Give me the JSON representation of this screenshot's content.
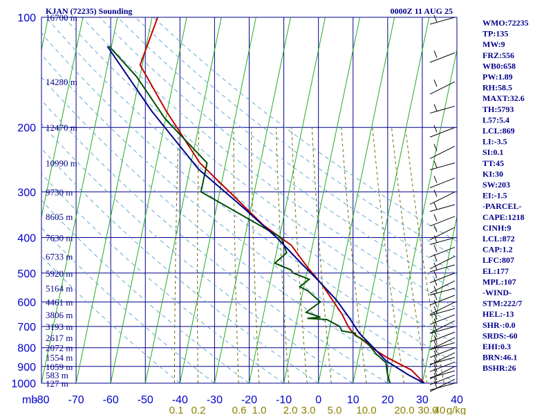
{
  "header": {
    "station": "KJAN (72235) Sounding",
    "time": "0000Z 11 AUG 25"
  },
  "chart_data": {
    "type": "line",
    "title": "KJAN (72235) Sounding",
    "subtitle": "0000Z 11 AUG 25",
    "x_label": "",
    "y_label": "mb",
    "x_range": [
      -80,
      40
    ],
    "y_range": [
      100,
      1000
    ],
    "y_scale": "log",
    "x_ticks": [
      -80,
      -70,
      -60,
      -50,
      -40,
      -30,
      -20,
      -10,
      0,
      10,
      20,
      30,
      40
    ],
    "y_ticks": [
      100,
      200,
      300,
      400,
      500,
      600,
      700,
      800,
      900,
      1000
    ],
    "mixing_ratio_labels": [
      "0.1",
      "0.2",
      "0.6",
      "1.0",
      "2.0",
      "3.0",
      "5.0",
      "10.0",
      "20.0",
      "30.0",
      "40",
      "g/kg"
    ],
    "height_labels": [
      {
        "p": 100,
        "label": "16700 m"
      },
      {
        "p": 150,
        "label": "14280 m"
      },
      {
        "p": 200,
        "label": "12470 m"
      },
      {
        "p": 250,
        "label": "10990 m"
      },
      {
        "p": 300,
        "label": "9730 m"
      },
      {
        "p": 350,
        "label": "8605 m"
      },
      {
        "p": 400,
        "label": "7630 m"
      },
      {
        "p": 450,
        "label": "6733 m"
      },
      {
        "p": 500,
        "label": "5920 m"
      },
      {
        "p": 550,
        "label": "5164 m"
      },
      {
        "p": 600,
        "label": "4461 m"
      },
      {
        "p": 650,
        "label": "3806 m"
      },
      {
        "p": 700,
        "label": "3193 m"
      },
      {
        "p": 750,
        "label": "2617 m"
      },
      {
        "p": 800,
        "label": "2072 m"
      },
      {
        "p": 850,
        "label": "1554 m"
      },
      {
        "p": 900,
        "label": "1059 m"
      },
      {
        "p": 950,
        "label": "583 m"
      },
      {
        "p": 1000,
        "label": "127 m"
      }
    ],
    "series": [
      {
        "name": "",
        "color": "#c00000",
        "points": [
          [
            -68.4,
            100
          ],
          [
            -70.6,
            135
          ],
          [
            -60.4,
            180
          ],
          [
            -47.5,
            250
          ],
          [
            -37.2,
            300
          ],
          [
            -25.4,
            370
          ],
          [
            -16.1,
            420
          ],
          [
            -10.3,
            480
          ],
          [
            -4.7,
            540
          ],
          [
            -1.8,
            580
          ],
          [
            2.8,
            650
          ],
          [
            5.2,
            700
          ],
          [
            7.0,
            730
          ],
          [
            10.0,
            760
          ],
          [
            14.2,
            810
          ],
          [
            18.2,
            850
          ],
          [
            26.0,
            920
          ],
          [
            30.6,
            1000
          ]
        ]
      },
      {
        "name": "",
        "color": "#004d00",
        "points": [
          [
            -80.7,
            120
          ],
          [
            -71.0,
            145
          ],
          [
            -60.0,
            190
          ],
          [
            -45.4,
            250
          ],
          [
            -45.4,
            300
          ],
          [
            -19.5,
            400
          ],
          [
            -17.0,
            440
          ],
          [
            -19.8,
            470
          ],
          [
            -17.3,
            480
          ],
          [
            -14.8,
            490
          ],
          [
            -13.9,
            500
          ],
          [
            -8.9,
            520
          ],
          [
            -11.2,
            545
          ],
          [
            -8.5,
            560
          ],
          [
            -4.3,
            600
          ],
          [
            -7.8,
            640
          ],
          [
            -3.4,
            660
          ],
          [
            -7.1,
            665
          ],
          [
            -1.4,
            670
          ],
          [
            2.8,
            700
          ],
          [
            3.6,
            720
          ],
          [
            7.7,
            730
          ],
          [
            7.7,
            740
          ],
          [
            11.3,
            770
          ],
          [
            14.8,
            830
          ],
          [
            18.3,
            880
          ],
          [
            19.3,
            940
          ],
          [
            20.7,
            1000
          ]
        ]
      },
      {
        "name": "",
        "color": "#00008b",
        "points": [
          [
            -81.2,
            120
          ],
          [
            -64.6,
            180
          ],
          [
            -47.5,
            260
          ],
          [
            -32.5,
            330
          ],
          [
            -20.8,
            400
          ],
          [
            -12.2,
            470
          ],
          [
            -5.6,
            530
          ],
          [
            0.0,
            590
          ],
          [
            4.8,
            660
          ],
          [
            8.8,
            730
          ],
          [
            13.8,
            800
          ],
          [
            18.3,
            870
          ],
          [
            25.6,
            950
          ],
          [
            30.6,
            1000
          ]
        ]
      }
    ],
    "indices": [
      "WMO:72235",
      "TP:135",
      "MW:9",
      "FRZ:556",
      "WB0:658",
      "PW:1.89",
      "RH:58.5",
      "MAXT:32.6",
      "TH:5793",
      "L57:5.4",
      "LCL:869",
      "LI:-3.5",
      "SI:0.1",
      "TT:45",
      "KI:30",
      "SW:203",
      "EI:-1.5",
      "-PARCEL-",
      "CAPE:1218",
      "CINH:9",
      "LCL:872",
      "CAP:1.2",
      "LFC:807",
      "EL:177",
      "MPL:107",
      "-WIND-",
      "STM:222/7",
      "HEL:-13",
      "SHR-:0.0",
      "SRDS:-60",
      "EHI:0.3",
      "BRN:46.1",
      "BSHR:26"
    ],
    "grid": true,
    "legend": "none"
  }
}
